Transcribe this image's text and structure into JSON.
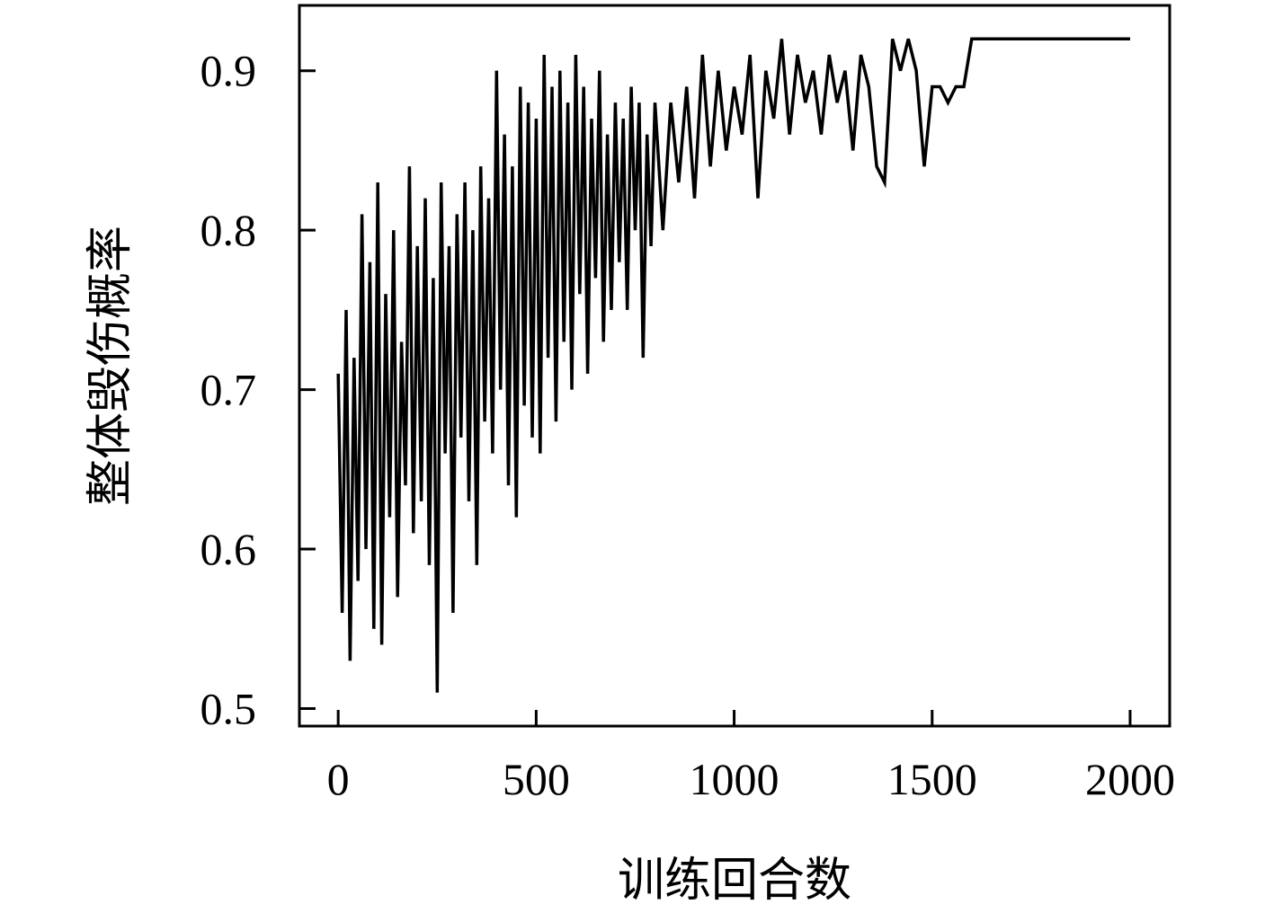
{
  "chart_data": {
    "type": "line",
    "x_label": "训练回合数",
    "y_label": "整体毁伤概率",
    "x": [
      0,
      10,
      20,
      30,
      40,
      50,
      60,
      70,
      80,
      90,
      100,
      110,
      120,
      130,
      140,
      150,
      160,
      170,
      180,
      190,
      200,
      210,
      220,
      230,
      240,
      250,
      260,
      270,
      280,
      290,
      300,
      310,
      320,
      330,
      340,
      350,
      360,
      370,
      380,
      390,
      400,
      410,
      420,
      430,
      440,
      450,
      460,
      470,
      480,
      490,
      500,
      510,
      520,
      530,
      540,
      550,
      560,
      570,
      580,
      590,
      600,
      610,
      620,
      630,
      640,
      650,
      660,
      670,
      680,
      690,
      700,
      710,
      720,
      730,
      740,
      750,
      760,
      770,
      780,
      790,
      800,
      820,
      840,
      860,
      880,
      900,
      920,
      940,
      960,
      980,
      1000,
      1020,
      1040,
      1060,
      1080,
      1100,
      1120,
      1140,
      1160,
      1180,
      1200,
      1220,
      1240,
      1260,
      1280,
      1300,
      1320,
      1340,
      1360,
      1380,
      1400,
      1420,
      1440,
      1460,
      1480,
      1500,
      1520,
      1540,
      1560,
      1580,
      1600,
      2000
    ],
    "values": [
      0.71,
      0.56,
      0.75,
      0.53,
      0.72,
      0.58,
      0.81,
      0.6,
      0.78,
      0.55,
      0.83,
      0.54,
      0.76,
      0.62,
      0.8,
      0.57,
      0.73,
      0.64,
      0.84,
      0.61,
      0.79,
      0.63,
      0.82,
      0.59,
      0.77,
      0.51,
      0.83,
      0.66,
      0.79,
      0.56,
      0.81,
      0.67,
      0.83,
      0.63,
      0.8,
      0.59,
      0.84,
      0.68,
      0.82,
      0.66,
      0.9,
      0.7,
      0.86,
      0.64,
      0.84,
      0.62,
      0.89,
      0.69,
      0.88,
      0.67,
      0.87,
      0.66,
      0.91,
      0.72,
      0.89,
      0.68,
      0.9,
      0.73,
      0.88,
      0.7,
      0.91,
      0.76,
      0.89,
      0.71,
      0.87,
      0.77,
      0.9,
      0.73,
      0.86,
      0.75,
      0.88,
      0.78,
      0.87,
      0.75,
      0.89,
      0.8,
      0.88,
      0.72,
      0.86,
      0.79,
      0.88,
      0.8,
      0.88,
      0.83,
      0.89,
      0.82,
      0.91,
      0.84,
      0.9,
      0.85,
      0.89,
      0.86,
      0.91,
      0.82,
      0.9,
      0.87,
      0.92,
      0.86,
      0.91,
      0.88,
      0.9,
      0.86,
      0.91,
      0.88,
      0.9,
      0.85,
      0.91,
      0.89,
      0.84,
      0.83,
      0.92,
      0.9,
      0.92,
      0.9,
      0.84,
      0.89,
      0.89,
      0.88,
      0.89,
      0.89,
      0.92,
      0.92
    ],
    "color": "#000000",
    "xlim": [
      -98,
      2100
    ],
    "xticks": [
      0,
      500,
      1000,
      1500,
      2000
    ],
    "ylim": [
      0.489,
      0.941
    ],
    "yticks": [
      0.5,
      0.6,
      0.7,
      0.8,
      0.9
    ],
    "grid": false
  }
}
